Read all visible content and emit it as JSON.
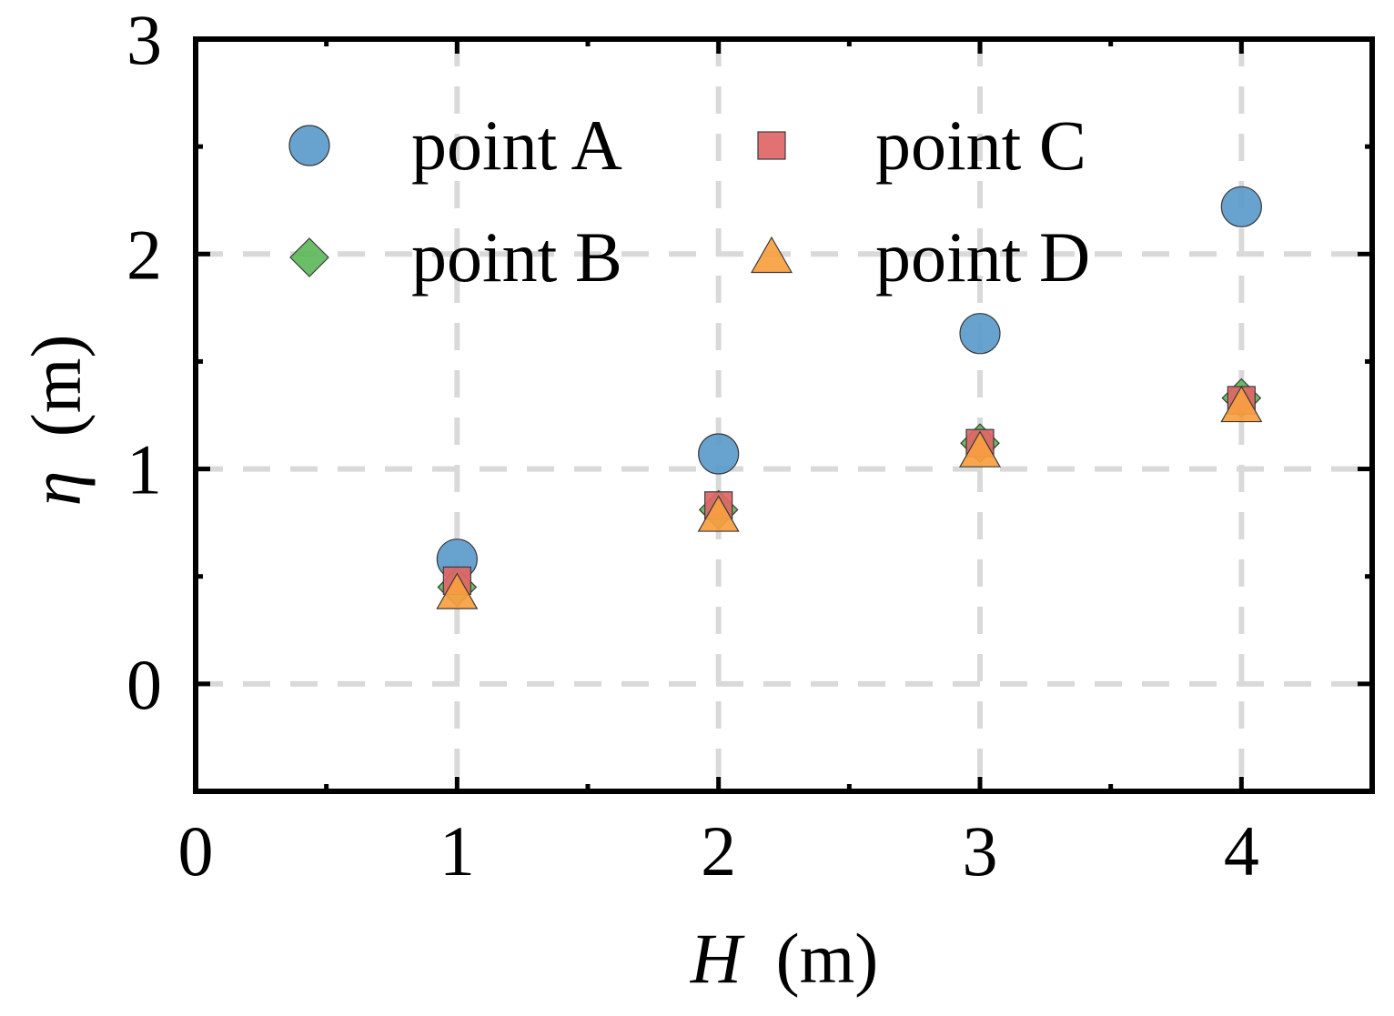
{
  "chart_data": {
    "type": "scatter",
    "title": "",
    "xlabel_symbol": "H",
    "xlabel_unit": "(m)",
    "ylabel_symbol": "η",
    "ylabel_unit": "(m)",
    "xlim": [
      0,
      4.5
    ],
    "ylim": [
      -0.5,
      3
    ],
    "xticks": [
      0,
      1,
      2,
      3,
      4
    ],
    "xtick_labels": [
      "0",
      "1",
      "2",
      "3",
      "4"
    ],
    "yticks": [
      0,
      1,
      2,
      3
    ],
    "ytick_labels": [
      "0",
      "1",
      "2",
      "3"
    ],
    "minor_xticks": [
      0.5,
      1.5,
      2.5,
      3.5
    ],
    "minor_yticks": [
      -0.5,
      0.5,
      1.5,
      2.5
    ],
    "grid": true,
    "grid_style": "dashed",
    "legend_placement": "top-left",
    "legend_columns": 2,
    "series": [
      {
        "name": "point A",
        "marker": "circle",
        "color": "#5B9BCB",
        "x": [
          1,
          2,
          3,
          4
        ],
        "y": [
          0.58,
          1.07,
          1.63,
          2.22
        ]
      },
      {
        "name": "point B",
        "marker": "diamond",
        "color": "#5DB85B",
        "x": [
          1,
          2,
          3,
          4
        ],
        "y": [
          0.45,
          0.81,
          1.12,
          1.33
        ]
      },
      {
        "name": "point C",
        "marker": "square",
        "color": "#E06666",
        "x": [
          1,
          2,
          3,
          4
        ],
        "y": [
          0.48,
          0.83,
          1.12,
          1.32
        ]
      },
      {
        "name": "point D",
        "marker": "triangle",
        "color": "#F9A040",
        "x": [
          1,
          2,
          3,
          4
        ],
        "y": [
          0.42,
          0.78,
          1.08,
          1.29
        ]
      }
    ]
  }
}
